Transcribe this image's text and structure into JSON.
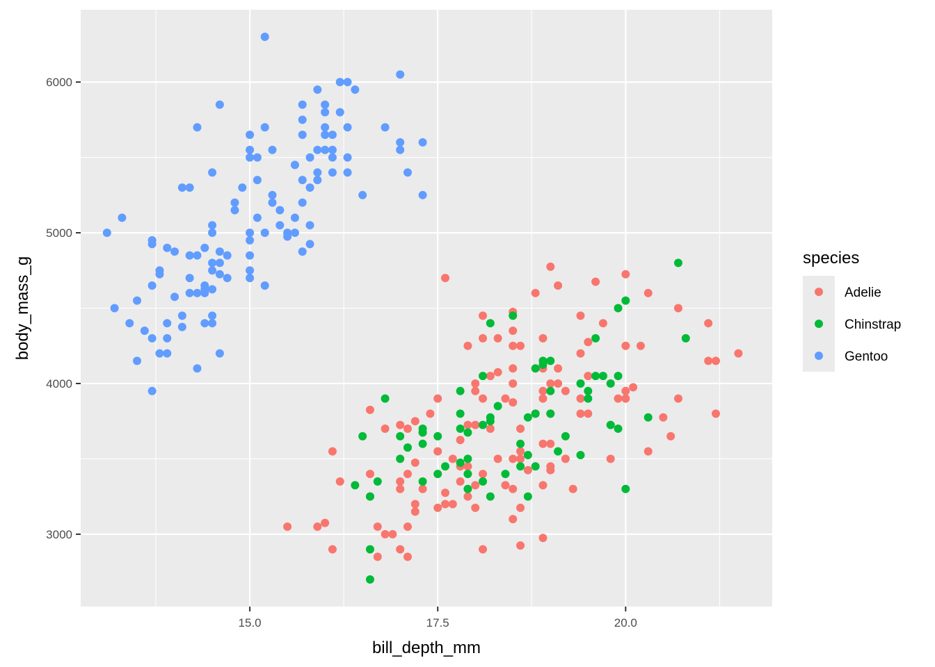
{
  "chart_data": {
    "type": "scatter",
    "xlabel": "bill_depth_mm",
    "ylabel": "body_mass_g",
    "xlim": [
      12.75,
      21.95
    ],
    "ylim": [
      2520,
      6480
    ],
    "x_ticks": [
      15.0,
      17.5,
      20.0
    ],
    "x_tick_labels": [
      "15.0",
      "17.5",
      "20.0"
    ],
    "y_ticks": [
      3000,
      4000,
      5000,
      6000
    ],
    "y_tick_labels": [
      "3000",
      "4000",
      "5000",
      "6000"
    ],
    "grid": true,
    "legend": {
      "title": "species",
      "placement": "right",
      "entries": [
        "Adelie",
        "Chinstrap",
        "Gentoo"
      ]
    },
    "series": [
      {
        "name": "Adelie",
        "color": "#F8766D",
        "points": [
          [
            17.6,
            4700
          ],
          [
            15.5,
            3050
          ],
          [
            15.9,
            3050
          ],
          [
            16.0,
            3075
          ],
          [
            16.1,
            3550
          ],
          [
            16.1,
            2900
          ],
          [
            16.2,
            3350
          ],
          [
            16.6,
            3400
          ],
          [
            16.6,
            3825
          ],
          [
            16.7,
            3050
          ],
          [
            16.7,
            2850
          ],
          [
            16.6,
            3250
          ],
          [
            16.8,
            3000
          ],
          [
            16.9,
            3000
          ],
          [
            16.8,
            3700
          ],
          [
            17.0,
            3725
          ],
          [
            17.0,
            3350
          ],
          [
            17.0,
            3300
          ],
          [
            17.0,
            2900
          ],
          [
            17.1,
            3700
          ],
          [
            17.1,
            3050
          ],
          [
            17.1,
            3400
          ],
          [
            17.1,
            2850
          ],
          [
            17.2,
            3750
          ],
          [
            17.2,
            3475
          ],
          [
            17.2,
            3200
          ],
          [
            17.2,
            3150
          ],
          [
            17.3,
            3675
          ],
          [
            17.3,
            3300
          ],
          [
            17.4,
            3800
          ],
          [
            17.5,
            3900
          ],
          [
            17.5,
            3550
          ],
          [
            17.5,
            3175
          ],
          [
            17.6,
            3275
          ],
          [
            17.6,
            3200
          ],
          [
            17.7,
            3500
          ],
          [
            17.7,
            3200
          ],
          [
            17.8,
            3450
          ],
          [
            17.8,
            3350
          ],
          [
            17.8,
            3625
          ],
          [
            17.9,
            3725
          ],
          [
            17.9,
            3250
          ],
          [
            17.9,
            3450
          ],
          [
            18.0,
            3175
          ],
          [
            18.0,
            3725
          ],
          [
            18.0,
            3325
          ],
          [
            18.1,
            4450
          ],
          [
            18.1,
            4300
          ],
          [
            18.1,
            3400
          ],
          [
            18.1,
            2900
          ],
          [
            18.1,
            3900
          ],
          [
            17.9,
            4250
          ],
          [
            18.0,
            4000
          ],
          [
            18.0,
            3950
          ],
          [
            18.2,
            4050
          ],
          [
            18.2,
            3700
          ],
          [
            18.3,
            4300
          ],
          [
            18.3,
            4075
          ],
          [
            18.3,
            3500
          ],
          [
            18.4,
            3900
          ],
          [
            18.4,
            3325
          ],
          [
            18.5,
            4475
          ],
          [
            18.5,
            4350
          ],
          [
            18.5,
            4250
          ],
          [
            18.5,
            4100
          ],
          [
            18.5,
            4000
          ],
          [
            18.5,
            3875
          ],
          [
            18.5,
            3500
          ],
          [
            18.5,
            3300
          ],
          [
            18.5,
            3100
          ],
          [
            18.6,
            4250
          ],
          [
            18.6,
            3700
          ],
          [
            18.6,
            3550
          ],
          [
            18.6,
            3500
          ],
          [
            18.6,
            3175
          ],
          [
            18.6,
            2925
          ],
          [
            18.7,
            3425
          ],
          [
            18.8,
            4600
          ],
          [
            18.8,
            3800
          ],
          [
            18.9,
            4300
          ],
          [
            18.9,
            4100
          ],
          [
            18.9,
            3950
          ],
          [
            18.9,
            3900
          ],
          [
            18.9,
            3600
          ],
          [
            18.9,
            3325
          ],
          [
            18.9,
            2975
          ],
          [
            19.0,
            4775
          ],
          [
            19.0,
            4000
          ],
          [
            19.0,
            3800
          ],
          [
            19.0,
            3600
          ],
          [
            19.0,
            3450
          ],
          [
            19.0,
            3425
          ],
          [
            19.1,
            4650
          ],
          [
            19.1,
            4100
          ],
          [
            19.1,
            4000
          ],
          [
            19.2,
            3950
          ],
          [
            19.2,
            3500
          ],
          [
            19.3,
            3300
          ],
          [
            19.4,
            4450
          ],
          [
            19.4,
            4200
          ],
          [
            19.4,
            3900
          ],
          [
            19.4,
            3800
          ],
          [
            19.5,
            4275
          ],
          [
            19.5,
            4050
          ],
          [
            19.5,
            3800
          ],
          [
            19.6,
            4675
          ],
          [
            19.7,
            4400
          ],
          [
            19.8,
            3500
          ],
          [
            19.9,
            3900
          ],
          [
            20.0,
            4725
          ],
          [
            20.0,
            4250
          ],
          [
            20.0,
            3950
          ],
          [
            20.0,
            3900
          ],
          [
            20.1,
            3975
          ],
          [
            20.2,
            4250
          ],
          [
            20.3,
            4600
          ],
          [
            20.3,
            3550
          ],
          [
            20.5,
            3775
          ],
          [
            20.6,
            3650
          ],
          [
            20.7,
            4500
          ],
          [
            20.7,
            3900
          ],
          [
            21.1,
            4400
          ],
          [
            21.1,
            4150
          ],
          [
            21.2,
            4150
          ],
          [
            21.2,
            3800
          ],
          [
            21.5,
            4200
          ]
        ]
      },
      {
        "name": "Chinstrap",
        "color": "#00BA38",
        "points": [
          [
            16.4,
            3325
          ],
          [
            16.5,
            3650
          ],
          [
            16.6,
            3250
          ],
          [
            16.6,
            2900
          ],
          [
            16.6,
            2700
          ],
          [
            16.7,
            3350
          ],
          [
            16.8,
            3900
          ],
          [
            17.0,
            3650
          ],
          [
            17.0,
            3500
          ],
          [
            17.1,
            3575
          ],
          [
            17.3,
            3700
          ],
          [
            17.3,
            3600
          ],
          [
            17.3,
            3350
          ],
          [
            17.3,
            3675
          ],
          [
            17.5,
            3650
          ],
          [
            17.5,
            3400
          ],
          [
            17.6,
            3450
          ],
          [
            17.8,
            3950
          ],
          [
            17.8,
            3800
          ],
          [
            17.8,
            3700
          ],
          [
            17.8,
            3475
          ],
          [
            17.9,
            3500
          ],
          [
            17.9,
            3400
          ],
          [
            17.9,
            3300
          ],
          [
            17.9,
            3675
          ],
          [
            18.1,
            4050
          ],
          [
            18.1,
            3725
          ],
          [
            18.1,
            3350
          ],
          [
            18.2,
            4400
          ],
          [
            18.2,
            3775
          ],
          [
            18.2,
            3750
          ],
          [
            18.2,
            3250
          ],
          [
            18.3,
            3850
          ],
          [
            18.4,
            3400
          ],
          [
            18.5,
            4450
          ],
          [
            18.6,
            3600
          ],
          [
            18.6,
            3450
          ],
          [
            18.7,
            3775
          ],
          [
            18.7,
            3525
          ],
          [
            18.7,
            3250
          ],
          [
            18.8,
            4100
          ],
          [
            18.8,
            3800
          ],
          [
            18.8,
            3450
          ],
          [
            18.9,
            4150
          ],
          [
            18.9,
            4125
          ],
          [
            19.0,
            4150
          ],
          [
            19.0,
            3950
          ],
          [
            19.0,
            3800
          ],
          [
            19.1,
            3550
          ],
          [
            19.2,
            3650
          ],
          [
            19.4,
            4000
          ],
          [
            19.4,
            3525
          ],
          [
            19.5,
            3950
          ],
          [
            19.5,
            3900
          ],
          [
            19.6,
            4300
          ],
          [
            19.6,
            4050
          ],
          [
            19.7,
            4050
          ],
          [
            19.8,
            4000
          ],
          [
            19.8,
            3725
          ],
          [
            19.9,
            4500
          ],
          [
            19.9,
            4050
          ],
          [
            19.9,
            3700
          ],
          [
            20.0,
            4550
          ],
          [
            20.0,
            3300
          ],
          [
            20.3,
            3775
          ],
          [
            20.7,
            4800
          ],
          [
            20.8,
            4300
          ]
        ]
      },
      {
        "name": "Gentoo",
        "color": "#619CFF",
        "points": [
          [
            13.1,
            5000
          ],
          [
            13.2,
            4500
          ],
          [
            13.3,
            5100
          ],
          [
            13.4,
            4400
          ],
          [
            13.5,
            4550
          ],
          [
            13.5,
            4150
          ],
          [
            13.6,
            4350
          ],
          [
            13.7,
            4950
          ],
          [
            13.7,
            4925
          ],
          [
            13.7,
            4650
          ],
          [
            13.7,
            4300
          ],
          [
            13.7,
            3950
          ],
          [
            13.8,
            4750
          ],
          [
            13.8,
            4725
          ],
          [
            13.8,
            4200
          ],
          [
            13.9,
            4900
          ],
          [
            13.9,
            4400
          ],
          [
            13.9,
            4300
          ],
          [
            13.9,
            4200
          ],
          [
            14.0,
            4875
          ],
          [
            14.0,
            4575
          ],
          [
            14.1,
            5300
          ],
          [
            14.1,
            4450
          ],
          [
            14.1,
            4375
          ],
          [
            14.2,
            5300
          ],
          [
            14.2,
            4850
          ],
          [
            14.2,
            4700
          ],
          [
            14.2,
            4600
          ],
          [
            14.3,
            5700
          ],
          [
            14.3,
            4850
          ],
          [
            14.3,
            4600
          ],
          [
            14.3,
            4100
          ],
          [
            14.4,
            4900
          ],
          [
            14.4,
            4650
          ],
          [
            14.4,
            4625
          ],
          [
            14.4,
            4600
          ],
          [
            14.4,
            4400
          ],
          [
            14.5,
            5400
          ],
          [
            14.5,
            5050
          ],
          [
            14.5,
            5000
          ],
          [
            14.5,
            4800
          ],
          [
            14.5,
            4750
          ],
          [
            14.5,
            4625
          ],
          [
            14.5,
            4450
          ],
          [
            14.5,
            4400
          ],
          [
            14.6,
            5850
          ],
          [
            14.6,
            4875
          ],
          [
            14.6,
            4800
          ],
          [
            14.6,
            4725
          ],
          [
            14.6,
            4200
          ],
          [
            14.7,
            4850
          ],
          [
            14.7,
            4700
          ],
          [
            14.8,
            5200
          ],
          [
            14.8,
            5150
          ],
          [
            14.9,
            5300
          ],
          [
            15.0,
            5650
          ],
          [
            15.0,
            5550
          ],
          [
            15.0,
            5500
          ],
          [
            15.0,
            5000
          ],
          [
            15.0,
            4950
          ],
          [
            15.0,
            4850
          ],
          [
            15.0,
            4750
          ],
          [
            15.0,
            4700
          ],
          [
            15.1,
            5500
          ],
          [
            15.1,
            5350
          ],
          [
            15.1,
            5100
          ],
          [
            15.2,
            6300
          ],
          [
            15.2,
            5700
          ],
          [
            15.2,
            5000
          ],
          [
            15.2,
            4650
          ],
          [
            15.3,
            5550
          ],
          [
            15.3,
            5250
          ],
          [
            15.3,
            5200
          ],
          [
            15.4,
            5050
          ],
          [
            15.4,
            5150
          ],
          [
            15.5,
            5000
          ],
          [
            15.5,
            4975
          ],
          [
            15.6,
            5450
          ],
          [
            15.6,
            5100
          ],
          [
            15.6,
            5000
          ],
          [
            15.7,
            5850
          ],
          [
            15.7,
            5750
          ],
          [
            15.7,
            5650
          ],
          [
            15.7,
            5350
          ],
          [
            15.7,
            5200
          ],
          [
            15.7,
            4875
          ],
          [
            15.8,
            5500
          ],
          [
            15.8,
            5300
          ],
          [
            15.8,
            5050
          ],
          [
            15.8,
            4925
          ],
          [
            15.9,
            5950
          ],
          [
            15.9,
            5550
          ],
          [
            15.9,
            5400
          ],
          [
            15.9,
            5350
          ],
          [
            16.0,
            5850
          ],
          [
            16.0,
            5800
          ],
          [
            16.0,
            5700
          ],
          [
            16.0,
            5650
          ],
          [
            16.0,
            5550
          ],
          [
            16.1,
            5650
          ],
          [
            16.1,
            5550
          ],
          [
            16.1,
            5500
          ],
          [
            16.1,
            5400
          ],
          [
            16.2,
            6000
          ],
          [
            16.2,
            5800
          ],
          [
            16.3,
            6000
          ],
          [
            16.3,
            5700
          ],
          [
            16.3,
            5500
          ],
          [
            16.3,
            5400
          ],
          [
            16.4,
            5950
          ],
          [
            16.5,
            5250
          ],
          [
            16.8,
            5700
          ],
          [
            17.0,
            6050
          ],
          [
            17.0,
            5600
          ],
          [
            17.0,
            5550
          ],
          [
            17.1,
            5400
          ],
          [
            17.3,
            5600
          ],
          [
            17.3,
            5250
          ]
        ]
      }
    ]
  }
}
